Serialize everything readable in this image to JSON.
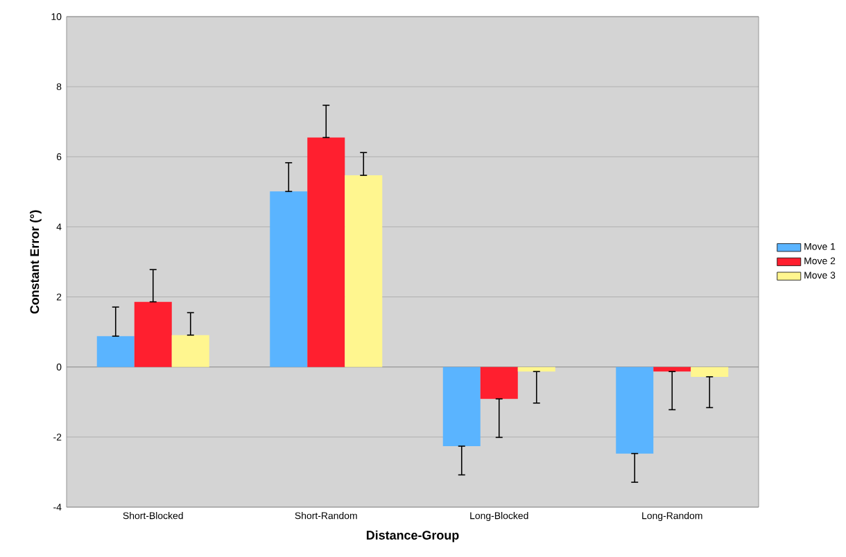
{
  "chart_data": {
    "type": "bar",
    "xlabel": "Distance-Group",
    "ylabel": "Constant Error (°)",
    "categories": [
      "Short-Blocked",
      "Short-Random",
      "Long-Blocked",
      "Long-Random"
    ],
    "series": [
      {
        "name": "Move 1",
        "color": "#5ab4ff",
        "values": [
          0.88,
          5.01,
          -2.26,
          -2.47
        ],
        "errors": [
          [
            0.88,
            1.71
          ],
          [
            5.01,
            5.83
          ],
          [
            -3.08,
            -2.26
          ],
          [
            -3.29,
            -2.47
          ]
        ]
      },
      {
        "name": "Move 2",
        "color": "#ff1f2f",
        "values": [
          1.86,
          6.55,
          -0.91,
          -0.13
        ],
        "errors": [
          [
            1.86,
            2.78
          ],
          [
            6.55,
            7.47
          ],
          [
            -2.01,
            -0.91
          ],
          [
            -1.22,
            -0.13
          ]
        ]
      },
      {
        "name": "Move 3",
        "color": "#fff68f",
        "values": [
          0.91,
          5.47,
          -0.13,
          -0.28
        ],
        "errors": [
          [
            0.91,
            1.55
          ],
          [
            5.47,
            6.12
          ],
          [
            -1.03,
            -0.13
          ],
          [
            -1.16,
            -0.28
          ]
        ]
      }
    ],
    "ylim": [
      -4,
      10
    ],
    "yticks": [
      -4,
      -2,
      0,
      2,
      4,
      6,
      8,
      10
    ],
    "grid": "y",
    "legend": "right"
  }
}
